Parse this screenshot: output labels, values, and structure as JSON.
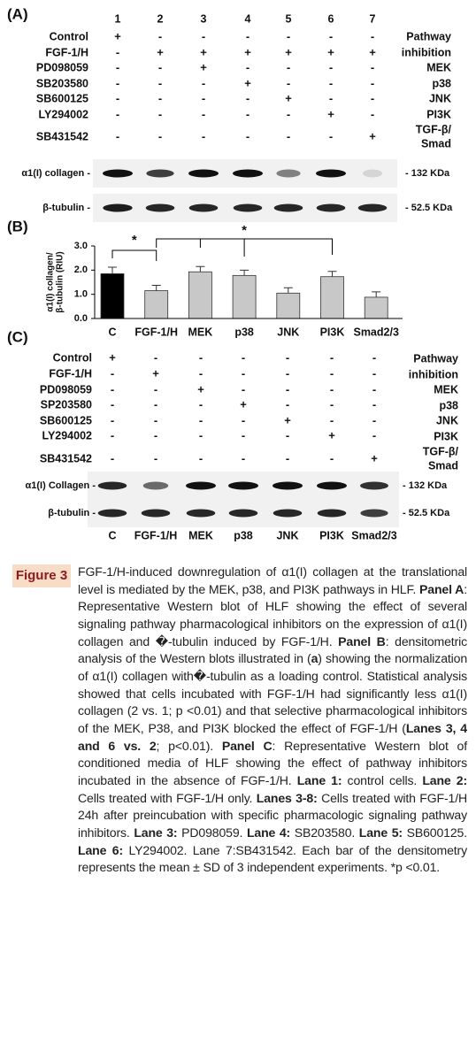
{
  "panel_a": {
    "label": "(A)",
    "lanes": [
      "1",
      "2",
      "3",
      "4",
      "5",
      "6",
      "7"
    ],
    "rows": [
      {
        "name": "Control",
        "signs": [
          "+",
          "-",
          "-",
          "-",
          "-",
          "-",
          "-"
        ]
      },
      {
        "name": "FGF-1/H",
        "signs": [
          "-",
          "+",
          "+",
          "+",
          "+",
          "+",
          "+"
        ]
      },
      {
        "name": "PD098059",
        "signs": [
          "-",
          "-",
          "+",
          "-",
          "-",
          "-",
          "-"
        ]
      },
      {
        "name": "SB203580",
        "signs": [
          "-",
          "-",
          "-",
          "+",
          "-",
          "-",
          "-"
        ]
      },
      {
        "name": "SB600125",
        "signs": [
          "-",
          "-",
          "-",
          "-",
          "+",
          "-",
          "-"
        ]
      },
      {
        "name": "LY294002",
        "signs": [
          "-",
          "-",
          "-",
          "-",
          "-",
          "+",
          "-"
        ]
      },
      {
        "name": "SB431542",
        "signs": [
          "-",
          "-",
          "-",
          "-",
          "-",
          "-",
          "+"
        ]
      }
    ],
    "right_labels": [
      "Pathway",
      "inhibition",
      "MEK",
      "p38",
      "JNK",
      "PI3K",
      "TGF-β/",
      "Smad"
    ],
    "blots": [
      {
        "name": "α1(I) collagen -",
        "size": "- 132 KDa"
      },
      {
        "name": "β-tubulin -",
        "size": "- 52.5 KDa"
      }
    ]
  },
  "chart_data": {
    "type": "bar",
    "label": "(B)",
    "ylabel": [
      "α1(I) collagen/",
      "β-tubulin (RIU)"
    ],
    "categories": [
      "C",
      "FGF-1/H",
      "MEK",
      "p38",
      "JNK",
      "PI3K",
      "Smad2/3"
    ],
    "values": [
      1.85,
      1.15,
      1.93,
      1.78,
      1.05,
      1.73,
      0.88
    ],
    "errors": [
      0.27,
      0.22,
      0.22,
      0.22,
      0.22,
      0.22,
      0.22
    ],
    "colors": [
      "#000000",
      "#c8c8c8",
      "#c8c8c8",
      "#c8c8c8",
      "#c8c8c8",
      "#c8c8c8",
      "#c8c8c8"
    ],
    "ylim": [
      0,
      3
    ],
    "yticks": [
      {
        "value": 0,
        "label": "0.0"
      },
      {
        "value": 1,
        "label": "1.0"
      },
      {
        "value": 2,
        "label": "2.0"
      },
      {
        "value": 3,
        "label": "3.0"
      }
    ],
    "annotations": [
      "*",
      "*"
    ]
  },
  "panel_c": {
    "label": "(C)",
    "rows": [
      {
        "name": "Control",
        "signs": [
          "+",
          "-",
          "-",
          "-",
          "-",
          "-",
          "-"
        ]
      },
      {
        "name": "FGF-1/H",
        "signs": [
          "-",
          "+",
          "-",
          "-",
          "-",
          "-",
          "-"
        ]
      },
      {
        "name": "PD098059",
        "signs": [
          "-",
          "-",
          "+",
          "-",
          "-",
          "-",
          "-"
        ]
      },
      {
        "name": "SP203580",
        "signs": [
          "-",
          "-",
          "-",
          "+",
          "-",
          "-",
          "-"
        ]
      },
      {
        "name": "SB600125",
        "signs": [
          "-",
          "-",
          "-",
          "-",
          "+",
          "-",
          "-"
        ]
      },
      {
        "name": "LY294002",
        "signs": [
          "-",
          "-",
          "-",
          "-",
          "-",
          "+",
          "-"
        ]
      },
      {
        "name": "SB431542",
        "signs": [
          "-",
          "-",
          "-",
          "-",
          "-",
          "-",
          "+"
        ]
      }
    ],
    "right_labels": [
      "Pathway",
      "inhibition",
      "MEK",
      "p38",
      "JNK",
      "PI3K",
      "TGF-β/",
      "Smad"
    ],
    "blots": [
      {
        "name": "α1(I) Collagen -",
        "size": "- 132 KDa"
      },
      {
        "name": "β-tubulin -",
        "size": "- 52.5 KDa"
      }
    ],
    "lane_labels": [
      "C",
      "FGF-1/H",
      "MEK",
      "p38",
      "JNK",
      "PI3K",
      "Smad2/3"
    ]
  },
  "caption": {
    "label": "Figure 3",
    "runs": [
      {
        "text": "FGF-1/H-induced downregulation of α1(I) collagen at the translational level is mediated by the MEK, p38, and PI3K pathways in HLF. ",
        "bold": false
      },
      {
        "text": "Panel A",
        "bold": true
      },
      {
        "text": ": Representative Western blot of HLF showing the effect of several signaling pathway pharmacological inhibitors on the expression of α1(I) collagen and �-tubulin induced by FGF-1/H. ",
        "bold": false
      },
      {
        "text": "Panel B",
        "bold": true
      },
      {
        "text": ": densitometric analysis of the Western blots illustrated in (",
        "bold": false
      },
      {
        "text": "a",
        "bold": true
      },
      {
        "text": ") showing the normalization of α1(I) collagen with�-tubulin as a loading control. Statistical analysis showed that cells incubated with FGF-1/H had significantly less α1(I) collagen (2 vs. 1; p <0.01) and that selective pharmacological inhibitors of the MEK, P38, and PI3K blocked the effect of FGF-1/H (",
        "bold": false
      },
      {
        "text": "Lanes 3, 4 and 6 vs. 2",
        "bold": true
      },
      {
        "text": "; p<0.01). ",
        "bold": false
      },
      {
        "text": "Panel C",
        "bold": true
      },
      {
        "text": ": Representative Western blot of conditioned media of HLF showing the effect of pathway inhibitors incubated in the absence of FGF-1/H. ",
        "bold": false
      },
      {
        "text": "Lane 1:",
        "bold": true
      },
      {
        "text": " control cells. ",
        "bold": false
      },
      {
        "text": "Lane 2:",
        "bold": true
      },
      {
        "text": " Cells treated with FGF-1/H only. ",
        "bold": false
      },
      {
        "text": "Lanes 3-8:",
        "bold": true
      },
      {
        "text": " Cells treated with FGF-1/H 24h after preincubation with specific pharmacologic signaling pathway inhibitors. ",
        "bold": false
      },
      {
        "text": "Lane 3:",
        "bold": true
      },
      {
        "text": " PD098059. ",
        "bold": false
      },
      {
        "text": "Lane 4:",
        "bold": true
      },
      {
        "text": " SB203580. ",
        "bold": false
      },
      {
        "text": "Lane 5:",
        "bold": true
      },
      {
        "text": " SB600125. ",
        "bold": false
      },
      {
        "text": "Lane 6:",
        "bold": true
      },
      {
        "text": " LY294002. Lane 7:SB431542. Each bar of the densitometry represents the mean ± SD of 3 independent experiments. *p <0.01.",
        "bold": false
      }
    ]
  }
}
